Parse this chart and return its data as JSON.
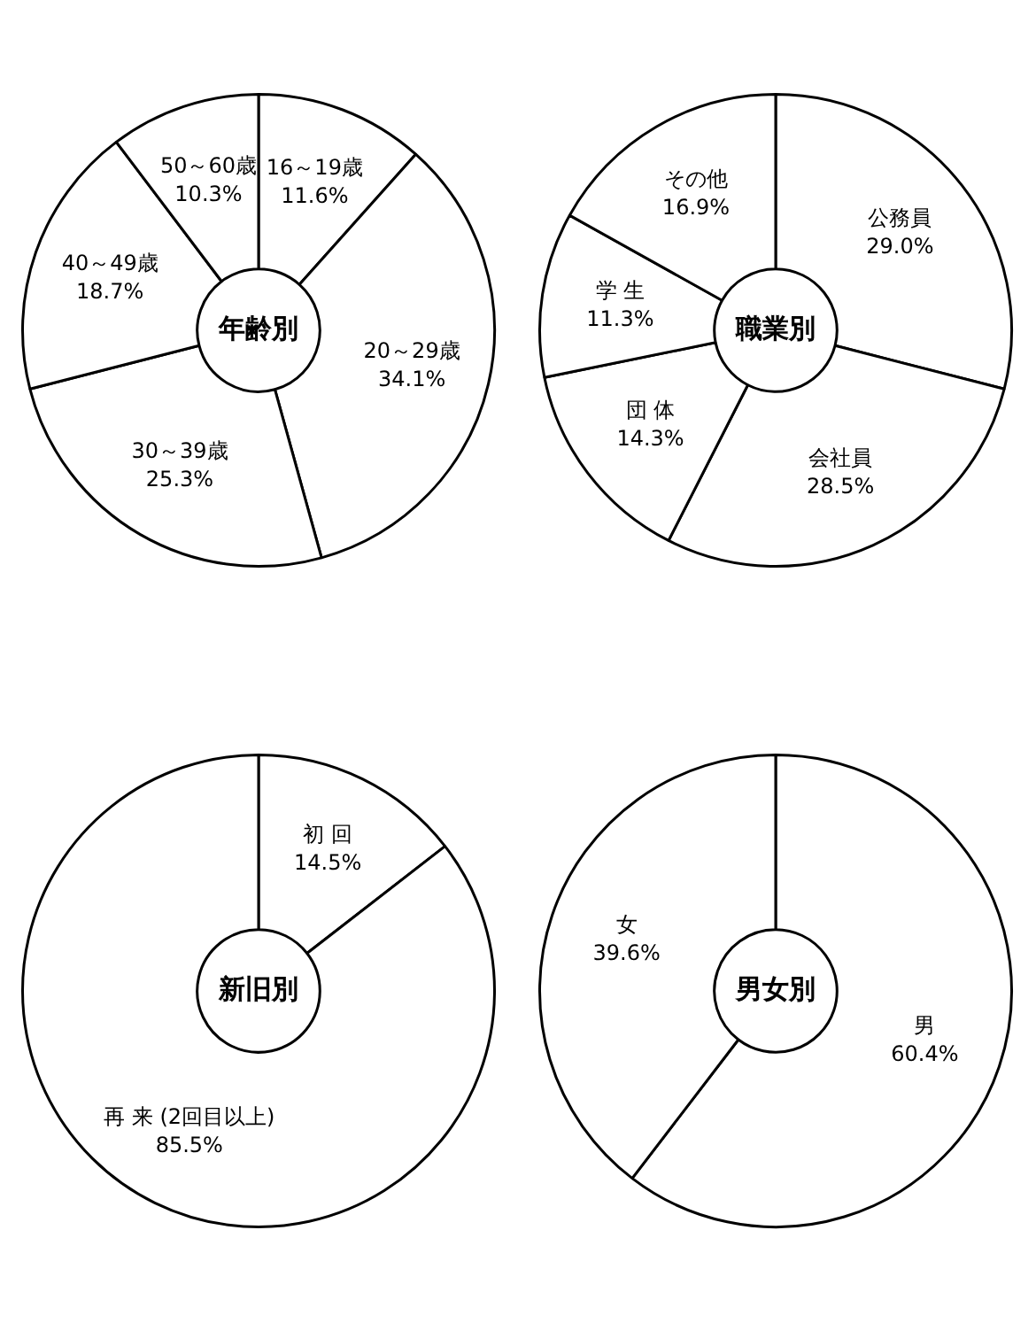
{
  "chart_data": [
    {
      "type": "donut",
      "title": "年齢別",
      "categories": [
        "16～19歳",
        "20～29歳",
        "30～39歳",
        "40～49歳",
        "50～60歳"
      ],
      "values": [
        11.6,
        34.1,
        25.3,
        18.7,
        10.3
      ],
      "colors": [
        "#ffffff",
        "#ffffff",
        "#ffffff",
        "#ffffff",
        "#ffffff"
      ],
      "value_labels": [
        "11.6%",
        "34.1%",
        "25.3%",
        "18.7%",
        "10.3%"
      ]
    },
    {
      "type": "donut",
      "title": "職業別",
      "categories": [
        "公務員",
        "会社員",
        "団 体",
        "学 生",
        "その他"
      ],
      "values": [
        29.0,
        28.5,
        14.3,
        11.3,
        16.9
      ],
      "colors": [
        "#ffffff",
        "#ffffff",
        "#ffffff",
        "#ffffff",
        "#ffffff"
      ],
      "value_labels": [
        "29.0%",
        "28.5%",
        "14.3%",
        "11.3%",
        "16.9%"
      ]
    },
    {
      "type": "donut",
      "title": "新旧別",
      "categories": [
        "初 回",
        "再 来 (2回目以上)"
      ],
      "values": [
        14.5,
        85.5
      ],
      "colors": [
        "#ffffff",
        "#ffffff"
      ],
      "value_labels": [
        "14.5%",
        "85.5%"
      ]
    },
    {
      "type": "donut",
      "title": "男女別",
      "categories": [
        "男",
        "女"
      ],
      "values": [
        60.4,
        39.6
      ],
      "colors": [
        "#ffffff",
        "#ffffff"
      ],
      "value_labels": [
        "60.4%",
        "39.6%"
      ]
    }
  ]
}
